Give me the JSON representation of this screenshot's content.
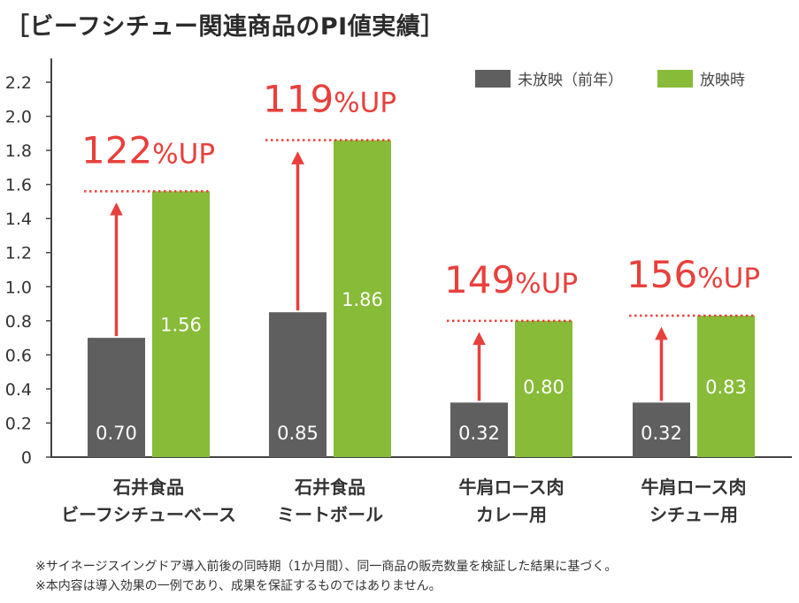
{
  "title": "［ビーフシチュー関連商品のPI値実績］",
  "legend": [
    {
      "name": "未放映（前年）",
      "color": "#5f5f5f"
    },
    {
      "name": "放映時",
      "color": "#87bb38"
    }
  ],
  "notes": [
    "※サイネージスイングドア導入前後の同時期（1か月間）、同一商品の販売数量を検証した結果に基づく。",
    "※本内容は導入効果の一例であり、成果を保証するものではありません。"
  ],
  "colors": {
    "before": "#5f5f5f",
    "after": "#87bb38",
    "accent": "#e8403c",
    "axis": "#444444"
  },
  "chart_data": {
    "type": "bar",
    "categories": [
      [
        "石井食品",
        "ビーフシチューベース"
      ],
      [
        "石井食品",
        "ミートボール"
      ],
      [
        "牛肩ロース肉",
        "カレー用"
      ],
      [
        "牛肩ロース肉",
        "シチュー用"
      ]
    ],
    "series": [
      {
        "name": "未放映（前年）",
        "values": [
          0.7,
          0.85,
          0.32,
          0.32
        ],
        "labels": [
          "0.70",
          "0.85",
          "0.32",
          "0.32"
        ]
      },
      {
        "name": "放映時",
        "values": [
          1.56,
          1.86,
          0.8,
          0.83
        ],
        "labels": [
          "1.56",
          "1.86",
          "0.80",
          "0.83"
        ]
      }
    ],
    "annotations": [
      {
        "num": "122",
        "unit": "%UP"
      },
      {
        "num": "119",
        "unit": "%UP"
      },
      {
        "num": "149",
        "unit": "%UP"
      },
      {
        "num": "156",
        "unit": "%UP"
      }
    ],
    "yticks": [
      "0",
      "0.2",
      "0.4",
      "0.6",
      "0.8",
      "1.0",
      "1.2",
      "1.4",
      "1.6",
      "1.8",
      "2.0",
      "2.2"
    ],
    "ylim": [
      0,
      2.2
    ],
    "grid": false,
    "legend_position": "top-right"
  }
}
